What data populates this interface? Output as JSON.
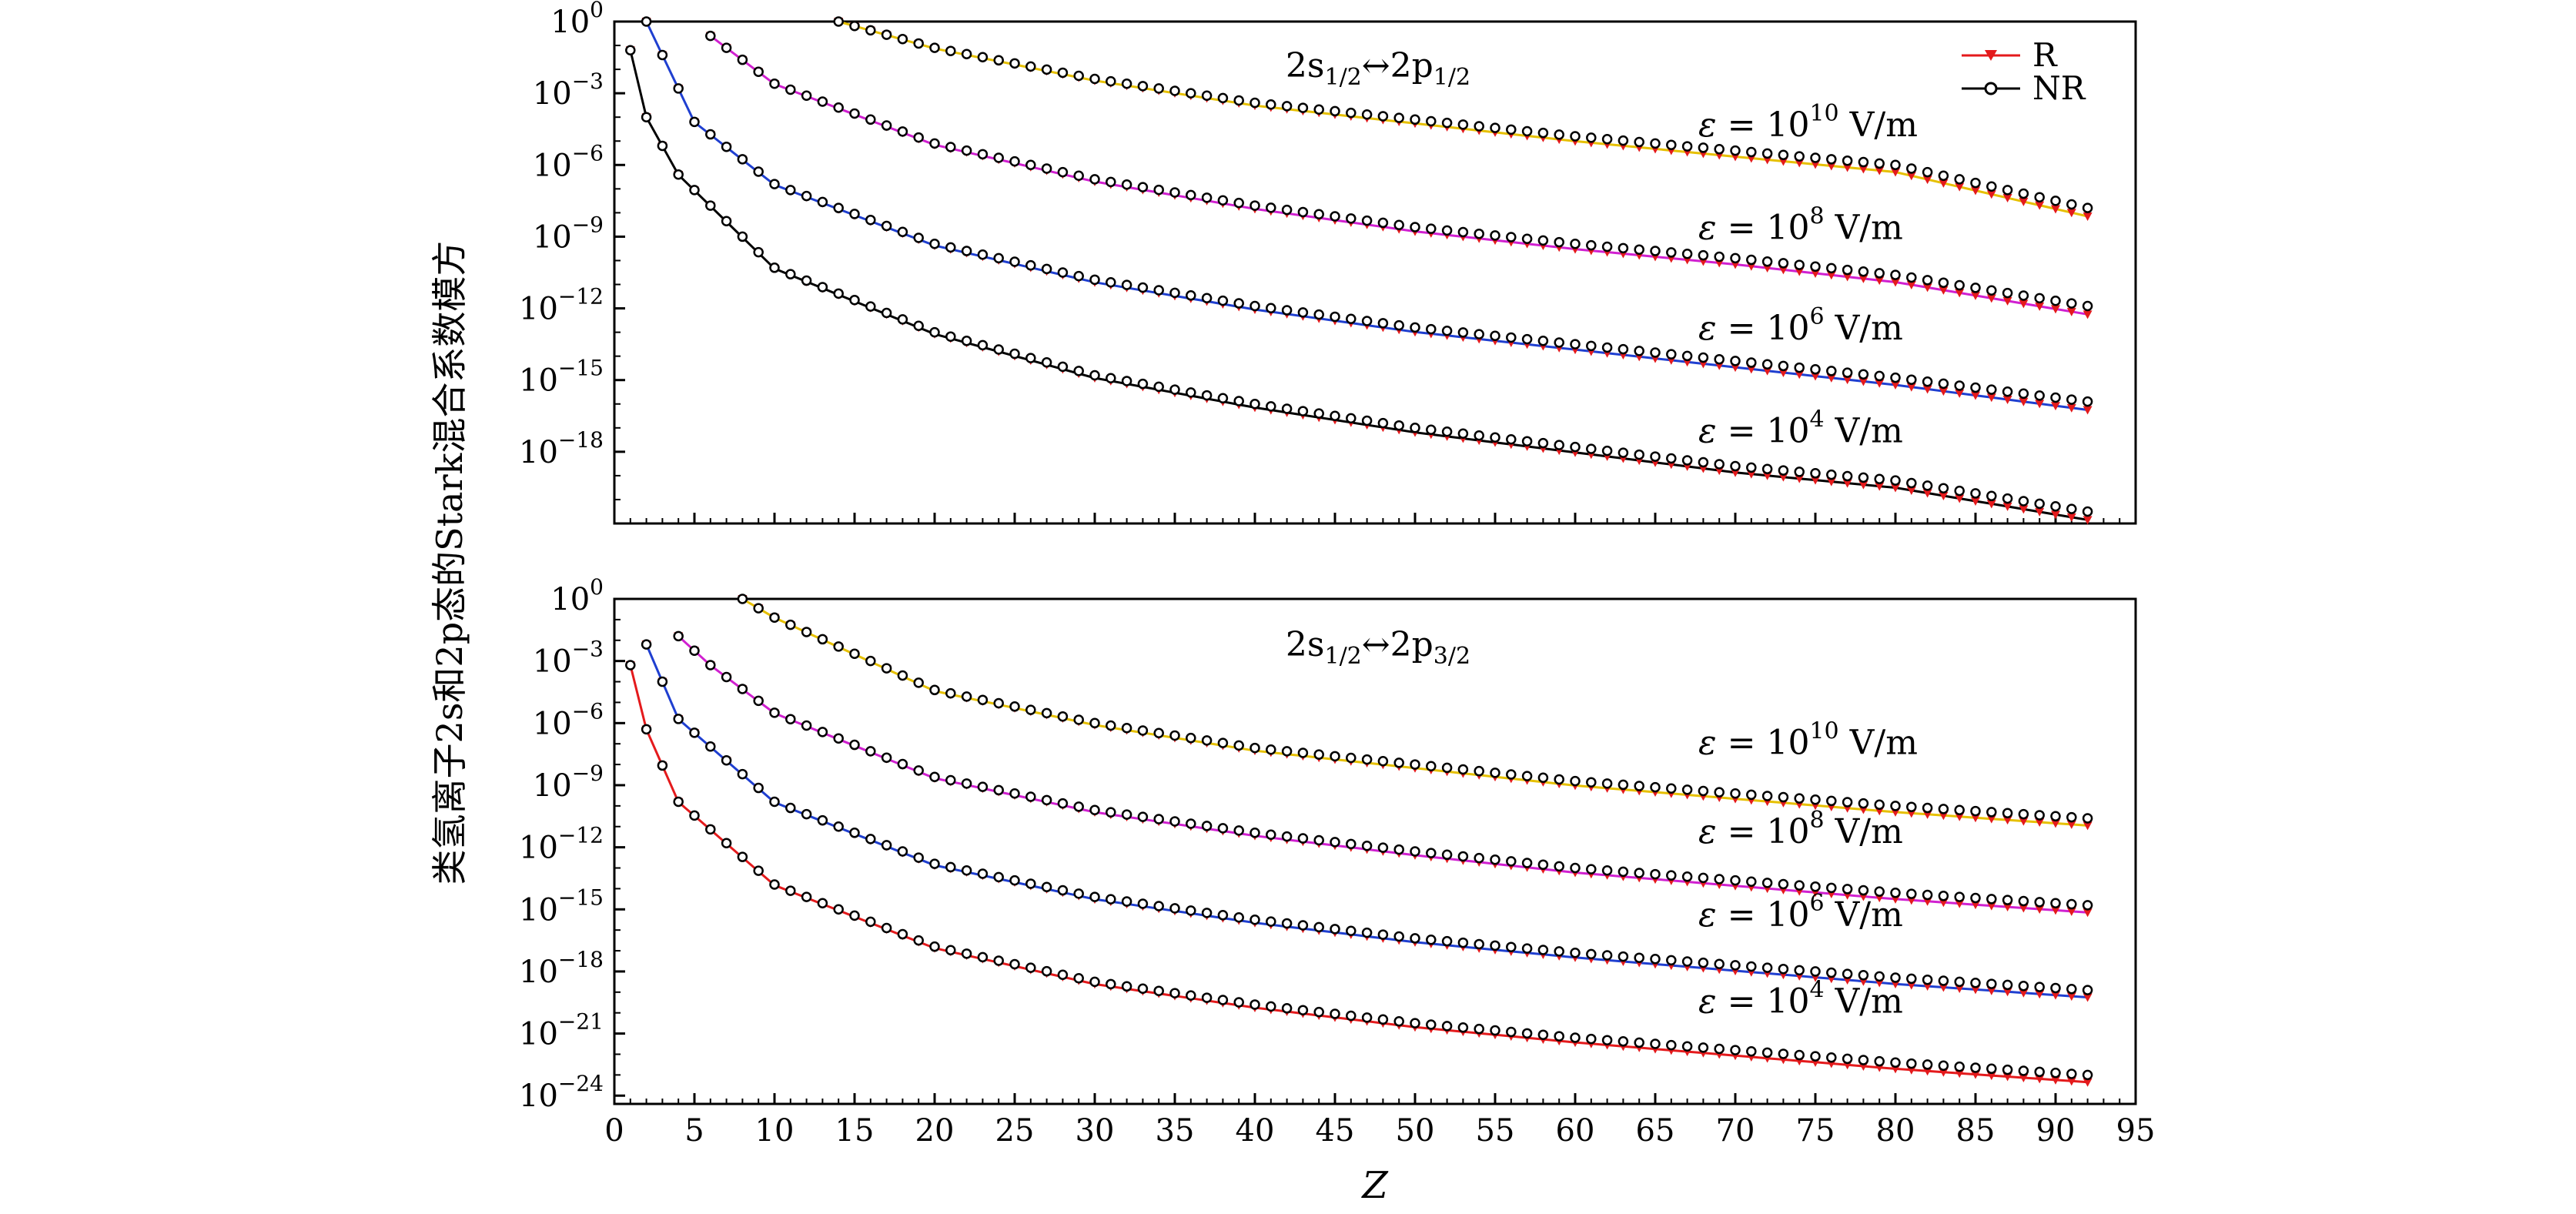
{
  "figure": {
    "ylabel": "类氢离子2s和2p态的Stark混合系数模方",
    "xlabel": "Z",
    "legend": [
      {
        "label": "R",
        "color": "#e41a1c",
        "marker": "triangle-down-filled"
      },
      {
        "label": "NR",
        "color": "#000000",
        "marker": "circle-open"
      }
    ],
    "field_label_prefix": "ε = 10",
    "field_label_unit": " V/m",
    "transition_prefix": "2s",
    "transition_mid": "↔2p",
    "subscript_half": "1/2",
    "subscript_three_half": "3/2"
  },
  "chart_data": [
    {
      "type": "line",
      "panel": "top",
      "title": "2s1/2↔2p1/2",
      "y_scale": "log",
      "xlim": [
        0,
        95
      ],
      "ylim_exp": [
        -21,
        0
      ],
      "x_ticks": [
        0,
        5,
        10,
        15,
        20,
        25,
        30,
        35,
        40,
        45,
        50,
        55,
        60,
        65,
        70,
        75,
        80,
        85,
        90,
        95
      ],
      "y_tick_exponents": [
        -18,
        -15,
        -12,
        -9,
        -6,
        -3,
        0
      ],
      "y_tick_labels": [
        "10^-18",
        "10^-15",
        "10^-12",
        "10^-9",
        "10^-6",
        "10^-3",
        "10^0"
      ],
      "series": [
        {
          "field_exp": "10",
          "R_color": "#e41a1c",
          "NR_color": "#000000",
          "line_color": "#e6c000",
          "label_y_exp": -4.8,
          "curve": {
            "Z0": 14,
            "k": 1.62,
            "r_k": 2.1,
            "r_end_shift": 0.25
          }
        },
        {
          "field_exp": "8",
          "R_color": "#e41a1c",
          "NR_color": "#000000",
          "line_color": "#d020d0",
          "label_y_exp": -9.1,
          "curve": {
            "Z0": 6,
            "k": 1.62,
            "r_k": 2.1,
            "r_end_shift": 0.25
          }
        },
        {
          "field_exp": "6",
          "R_color": "#e41a1c",
          "NR_color": "#000000",
          "line_color": "#1f3fd0",
          "label_y_exp": -13.3,
          "curve": {
            "Z0": 2,
            "k": 1.61,
            "r_k": 2.1,
            "r_end_shift": 0.3
          }
        },
        {
          "field_exp": "4",
          "R_color": "#e41a1c",
          "NR_color": "#000000",
          "line_color": "#000000",
          "label_y_exp": -17.6,
          "curve": {
            "Z0": 1,
            "k": 1.62,
            "r_k": 2.1,
            "r_end_shift": 0.3
          }
        }
      ],
      "curve_points": [
        {
          "series": "10",
          "Z": [
            14,
            20,
            30,
            40,
            50,
            60,
            70,
            80,
            92
          ],
          "NR_exp": [
            0,
            -1.1,
            -2.4,
            -3.4,
            -4.1,
            -4.8,
            -5.4,
            -6.0,
            -7.8
          ]
        },
        {
          "series": "8",
          "Z": [
            6,
            10,
            20,
            30,
            40,
            50,
            60,
            70,
            80,
            92
          ],
          "NR_exp": [
            -0.6,
            -2.6,
            -5.1,
            -6.6,
            -7.7,
            -8.6,
            -9.3,
            -9.9,
            -10.6,
            -11.9
          ]
        },
        {
          "series": "6",
          "Z": [
            2,
            5,
            10,
            20,
            30,
            40,
            50,
            60,
            70,
            80,
            92
          ],
          "NR_exp": [
            0,
            -4.2,
            -6.8,
            -9.3,
            -10.8,
            -11.9,
            -12.8,
            -13.5,
            -14.2,
            -14.9,
            -15.9
          ]
        },
        {
          "series": "4",
          "Z": [
            1,
            2,
            4,
            10,
            20,
            30,
            40,
            50,
            60,
            70,
            80,
            92
          ],
          "NR_exp": [
            -1.2,
            -4.0,
            -6.4,
            -10.3,
            -13.0,
            -14.8,
            -16.0,
            -17.0,
            -17.8,
            -18.6,
            -19.2,
            -20.5
          ]
        }
      ]
    },
    {
      "type": "line",
      "panel": "bottom",
      "title": "2s1/2↔2p3/2",
      "y_scale": "log",
      "xlim": [
        0,
        95
      ],
      "ylim_exp": [
        -24,
        0
      ],
      "x_ticks": [
        0,
        5,
        10,
        15,
        20,
        25,
        30,
        35,
        40,
        45,
        50,
        55,
        60,
        65,
        70,
        75,
        80,
        85,
        90,
        95
      ],
      "y_tick_exponents": [
        -24,
        -21,
        -18,
        -15,
        -12,
        -9,
        -6,
        -3,
        0
      ],
      "y_tick_labels": [
        "10^-24",
        "10^-21",
        "10^-18",
        "10^-15",
        "10^-12",
        "10^-9",
        "10^-6",
        "10^-3",
        "10^0"
      ],
      "series": [
        {
          "field_exp": "10",
          "R_color": "#e41a1c",
          "NR_color": "#000000",
          "line_color": "#e6c000",
          "label_y_exp": -7.5
        },
        {
          "field_exp": "8",
          "R_color": "#e41a1c",
          "NR_color": "#000000",
          "line_color": "#d020d0",
          "label_y_exp": -11.8
        },
        {
          "field_exp": "6",
          "R_color": "#e41a1c",
          "NR_color": "#000000",
          "line_color": "#1f3fd0",
          "label_y_exp": -15.8
        },
        {
          "field_exp": "4",
          "R_color": "#e41a1c",
          "NR_color": "#000000",
          "line_color": "#e41a1c",
          "label_y_exp": -20.0
        }
      ],
      "curve_points": [
        {
          "series": "10",
          "Z": [
            8,
            10,
            20,
            30,
            40,
            50,
            60,
            70,
            80,
            92
          ],
          "NR_exp": [
            0,
            -0.9,
            -4.4,
            -6.0,
            -7.2,
            -8.0,
            -8.8,
            -9.4,
            -10.0,
            -10.6
          ]
        },
        {
          "series": "8",
          "Z": [
            4,
            6,
            10,
            20,
            30,
            40,
            50,
            60,
            70,
            80,
            92
          ],
          "NR_exp": [
            -1.8,
            -3.2,
            -5.5,
            -8.6,
            -10.2,
            -11.3,
            -12.2,
            -13.0,
            -13.6,
            -14.2,
            -14.8
          ]
        },
        {
          "series": "6",
          "Z": [
            2,
            4,
            10,
            20,
            30,
            40,
            50,
            60,
            70,
            80,
            92
          ],
          "NR_exp": [
            -2.2,
            -5.8,
            -9.8,
            -12.8,
            -14.4,
            -15.5,
            -16.4,
            -17.1,
            -17.7,
            -18.3,
            -18.9
          ]
        },
        {
          "series": "4",
          "Z": [
            1,
            2,
            4,
            10,
            20,
            30,
            40,
            50,
            60,
            70,
            80,
            92
          ],
          "NR_exp": [
            -3.2,
            -6.3,
            -9.8,
            -13.8,
            -16.8,
            -18.5,
            -19.6,
            -20.5,
            -21.2,
            -21.8,
            -22.4,
            -23.0
          ]
        }
      ]
    }
  ]
}
